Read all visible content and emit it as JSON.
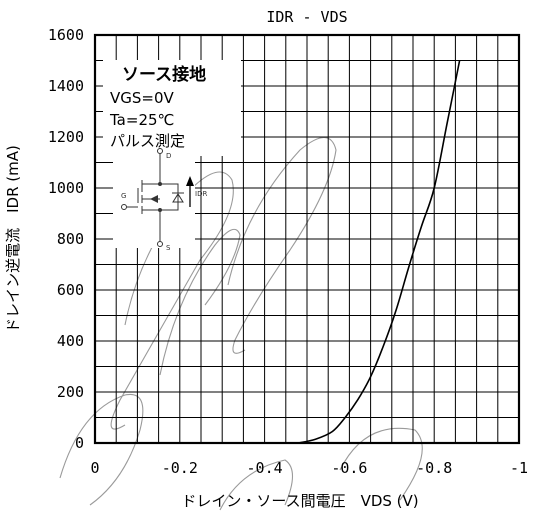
{
  "chart_data": {
    "type": "line",
    "title": "IDR - VDS",
    "xlabel": "ドレイン・ソース間電圧　VDS (V)",
    "ylabel": "ドレイン逆電流　IDR (mA)",
    "xlim": [
      0,
      -1
    ],
    "ylim": [
      0,
      1600
    ],
    "x_ticks": [
      0,
      -0.2,
      -0.4,
      -0.6,
      -0.8,
      -1
    ],
    "x_tick_labels": [
      "0",
      "-0.2",
      "-0.4",
      "-0.6",
      "-0.8",
      "-1"
    ],
    "y_ticks": [
      0,
      200,
      400,
      600,
      800,
      1000,
      1200,
      1400,
      1600
    ],
    "y_tick_labels": [
      "0",
      "200",
      "400",
      "600",
      "800",
      "1000",
      "1200",
      "1400",
      "1600"
    ],
    "grid": true,
    "x_minor_step": -0.05,
    "y_minor_step": 100,
    "series": [
      {
        "x": [
          -0.48,
          -0.52,
          -0.56,
          -0.59,
          -0.62,
          -0.65,
          -0.68,
          -0.71,
          -0.74,
          -0.77,
          -0.8,
          -0.83,
          -0.86
        ],
        "y": [
          0,
          15,
          45,
          100,
          170,
          260,
          380,
          520,
          690,
          850,
          1000,
          1250,
          1500
        ],
        "color": "#000000"
      }
    ],
    "annotations": {
      "line1": "ソース接地",
      "line2": "VGS=0V",
      "line3": "Ta=25℃",
      "line4": "パルス測定"
    },
    "circuit_labels": {
      "drain": "D",
      "gate": "G",
      "source": "S",
      "current": "IDR"
    }
  }
}
